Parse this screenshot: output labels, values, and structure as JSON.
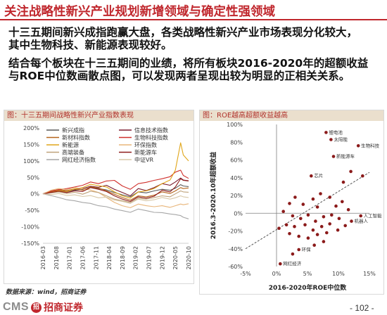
{
  "page": {
    "title": "关注战略性新兴产业规划新增领域与确定性强领域",
    "paragraphs": [
      [
        "十三五期间新兴成指跑赢大盘，各类战略性新兴产业市场表现分化较大，",
        "其中生物科技、新能源表现较好。"
      ],
      [
        "结合每个板块在十三五期间的业绩，将所有板块2016-2020年的超额收益",
        "与ROE中位数画散点图，可以发现两者呈现出较为明显的正相关关系。"
      ]
    ],
    "source": "数据来源：wind，招商证券",
    "page_number": "- 102 -"
  },
  "brand": {
    "logo_text": "CMS",
    "logo_mark": "招",
    "name": "招商证券"
  },
  "colors": {
    "accent": "#c0272d",
    "chart_title_bar": "#eadfcd",
    "chart_title_text": "#b0302a"
  },
  "chart_data": [
    {
      "type": "line",
      "title": "图：十三五期间战略性新兴产业指数表现",
      "x": [
        "2016-03",
        "2016-06",
        "2016-09",
        "2016-12",
        "2017-03",
        "2017-06",
        "2017-09",
        "2017-12",
        "2018-03",
        "2018-06",
        "2018-09",
        "2018-12",
        "2019-03",
        "2019-06",
        "2019-09",
        "2019-12",
        "2020-03",
        "2020-05",
        "2020-07",
        "2020-08",
        "2020-10"
      ],
      "x_tick_labels": [
        "2016-03",
        "2016-08",
        "2017-01",
        "2017-06",
        "2017-11",
        "2018-04",
        "2018-09",
        "2019-02",
        "2019-07",
        "2019-12",
        "2020-05",
        "2020-10"
      ],
      "ylim": [
        -150,
        200
      ],
      "y_ticks": [
        200,
        150,
        100,
        50,
        0,
        -50,
        -100,
        -150
      ],
      "y_tick_labels": [
        "200%",
        "150%",
        "100%",
        "50%",
        "0%",
        "-50%",
        "-100%",
        "-150%"
      ],
      "legend_position": "top-left, two columns",
      "grid": false,
      "series": [
        {
          "name": "新兴成指",
          "color": "#595959",
          "values": [
            0,
            6,
            9,
            5,
            11,
            13,
            19,
            16,
            12,
            4,
            -3,
            -9,
            6,
            3,
            9,
            14,
            11,
            17,
            28,
            24,
            22
          ]
        },
        {
          "name": "信息技术指数",
          "color": "#7b1c2e",
          "values": [
            0,
            7,
            11,
            8,
            13,
            16,
            23,
            20,
            26,
            14,
            4,
            -6,
            16,
            10,
            19,
            31,
            26,
            36,
            48,
            42,
            40
          ]
        },
        {
          "name": "新材料指数",
          "color": "#b5651d",
          "values": [
            0,
            9,
            13,
            10,
            15,
            11,
            21,
            18,
            9,
            -1,
            -11,
            -19,
            -6,
            -9,
            -4,
            6,
            1,
            9,
            19,
            16,
            18
          ]
        },
        {
          "name": "生物科技指数",
          "color": "#d0312d",
          "values": [
            0,
            8,
            13,
            16,
            21,
            26,
            36,
            31,
            39,
            41,
            24,
            14,
            31,
            35,
            41,
            46,
            52,
            66,
            72,
            56,
            47
          ]
        },
        {
          "name": "新能源",
          "color": "#e0a61a",
          "values": [
            0,
            5,
            10,
            7,
            15,
            19,
            29,
            25,
            21,
            6,
            -6,
            -13,
            6,
            9,
            16,
            31,
            42,
            72,
            155,
            118,
            100
          ]
        },
        {
          "name": "环保指数",
          "color": "#e8b57a",
          "values": [
            0,
            11,
            16,
            13,
            19,
            15,
            12,
            4,
            -11,
            -26,
            -36,
            -42,
            -31,
            -36,
            -39,
            -36,
            -41,
            -36,
            -31,
            -33,
            -30
          ]
        },
        {
          "name": "高端装备",
          "color": "#bfa27a",
          "values": [
            0,
            3,
            6,
            1,
            5,
            -1,
            8,
            4,
            -6,
            -16,
            -21,
            -26,
            -13,
            -16,
            -11,
            -6,
            -9,
            0,
            9,
            6,
            5
          ]
        },
        {
          "name": "新能源车",
          "color": "#8e1b1b",
          "values": [
            0,
            4,
            8,
            4,
            9,
            7,
            19,
            14,
            7,
            -6,
            -16,
            -23,
            -9,
            -13,
            -7,
            11,
            6,
            21,
            46,
            41,
            39
          ]
        },
        {
          "name": "网红经济指数",
          "color": "#a6a6a6",
          "values": [
            0,
            -5,
            -11,
            -18,
            -21,
            -26,
            -29,
            -36,
            -39,
            -46,
            -51,
            -56,
            -46,
            -51,
            -56,
            -57,
            -61,
            -63,
            -66,
            -71,
            -76
          ]
        },
        {
          "name": "中证VR",
          "color": "#d8c8a8",
          "values": [
            0,
            -2,
            1,
            -5,
            -3,
            -8,
            -5,
            -12,
            -10,
            -19,
            -23,
            -29,
            -16,
            -21,
            -18,
            -11,
            -16,
            -12,
            -6,
            -9,
            -11
          ]
        }
      ]
    },
    {
      "type": "scatter",
      "title": "图：ROE越高超额收益越高",
      "xlabel": "2016-2020年ROE中位数",
      "ylabel": "2016.3-2020.10年超额收益",
      "xlim": [
        -5,
        15
      ],
      "ylim": [
        -60,
        100
      ],
      "x_ticks": [
        -5,
        0,
        5,
        10,
        15
      ],
      "x_tick_labels": [
        "-5%",
        "0%",
        "5%",
        "10%",
        "15%"
      ],
      "y_ticks": [
        100,
        80,
        60,
        40,
        20,
        0,
        -20,
        -40,
        -60
      ],
      "y_tick_labels": [
        "100%",
        "80%",
        "60%",
        "40%",
        "20%",
        "0%",
        "-20%",
        "-40%",
        "-60%"
      ],
      "grid": false,
      "point_color": "#8b1a1a",
      "trendline": {
        "style": "dashed",
        "from": [
          -5,
          -40
        ],
        "to": [
          15,
          46
        ]
      },
      "points": [
        {
          "x": 8.0,
          "y": 91,
          "label": "锂电池"
        },
        {
          "x": 8.8,
          "y": 83,
          "label": "太阳能"
        },
        {
          "x": 13.2,
          "y": 76,
          "label": "生物科技"
        },
        {
          "x": 9.2,
          "y": 64,
          "label": "新能源车"
        },
        {
          "x": 5.6,
          "y": 42,
          "label": "芯片"
        },
        {
          "x": 13.6,
          "y": -3,
          "label": "人工智能"
        },
        {
          "x": 12.1,
          "y": -9,
          "label": "机器人"
        },
        {
          "x": 3.6,
          "y": -41,
          "label": "环保"
        },
        {
          "x": 0.6,
          "y": -57,
          "label": "网红经济"
        },
        {
          "x": 12.0,
          "y": 47
        },
        {
          "x": 13.9,
          "y": 42
        },
        {
          "x": 10.8,
          "y": 35
        },
        {
          "x": 7.1,
          "y": 22
        },
        {
          "x": 8.6,
          "y": 18
        },
        {
          "x": 5.9,
          "y": 16
        },
        {
          "x": 3.0,
          "y": 18
        },
        {
          "x": 2.1,
          "y": 11
        },
        {
          "x": 4.3,
          "y": 10
        },
        {
          "x": 6.6,
          "y": 7
        },
        {
          "x": 9.6,
          "y": 8
        },
        {
          "x": 10.6,
          "y": 13
        },
        {
          "x": 11.6,
          "y": 4
        },
        {
          "x": 1.1,
          "y": 2
        },
        {
          "x": 2.6,
          "y": -3
        },
        {
          "x": 3.9,
          "y": -6
        },
        {
          "x": 5.1,
          "y": -2
        },
        {
          "x": 6.3,
          "y": -9
        },
        {
          "x": 7.6,
          "y": -4
        },
        {
          "x": 8.9,
          "y": -2
        },
        {
          "x": 10.1,
          "y": -6
        },
        {
          "x": 1.6,
          "y": -13
        },
        {
          "x": 0.4,
          "y": -17
        },
        {
          "x": 2.9,
          "y": -15
        },
        {
          "x": 4.6,
          "y": -13
        },
        {
          "x": 5.9,
          "y": -19
        },
        {
          "x": 7.3,
          "y": -15
        },
        {
          "x": 8.6,
          "y": -12
        },
        {
          "x": 9.9,
          "y": -19
        },
        {
          "x": 11.1,
          "y": -14
        },
        {
          "x": 2.1,
          "y": -23
        },
        {
          "x": 3.6,
          "y": -26
        },
        {
          "x": 5.1,
          "y": -28
        },
        {
          "x": 6.6,
          "y": -24
        },
        {
          "x": 8.1,
          "y": -22
        },
        {
          "x": 6.1,
          "y": -36
        },
        {
          "x": 7.6,
          "y": -32
        },
        {
          "x": 2.6,
          "y": -46
        }
      ]
    }
  ]
}
